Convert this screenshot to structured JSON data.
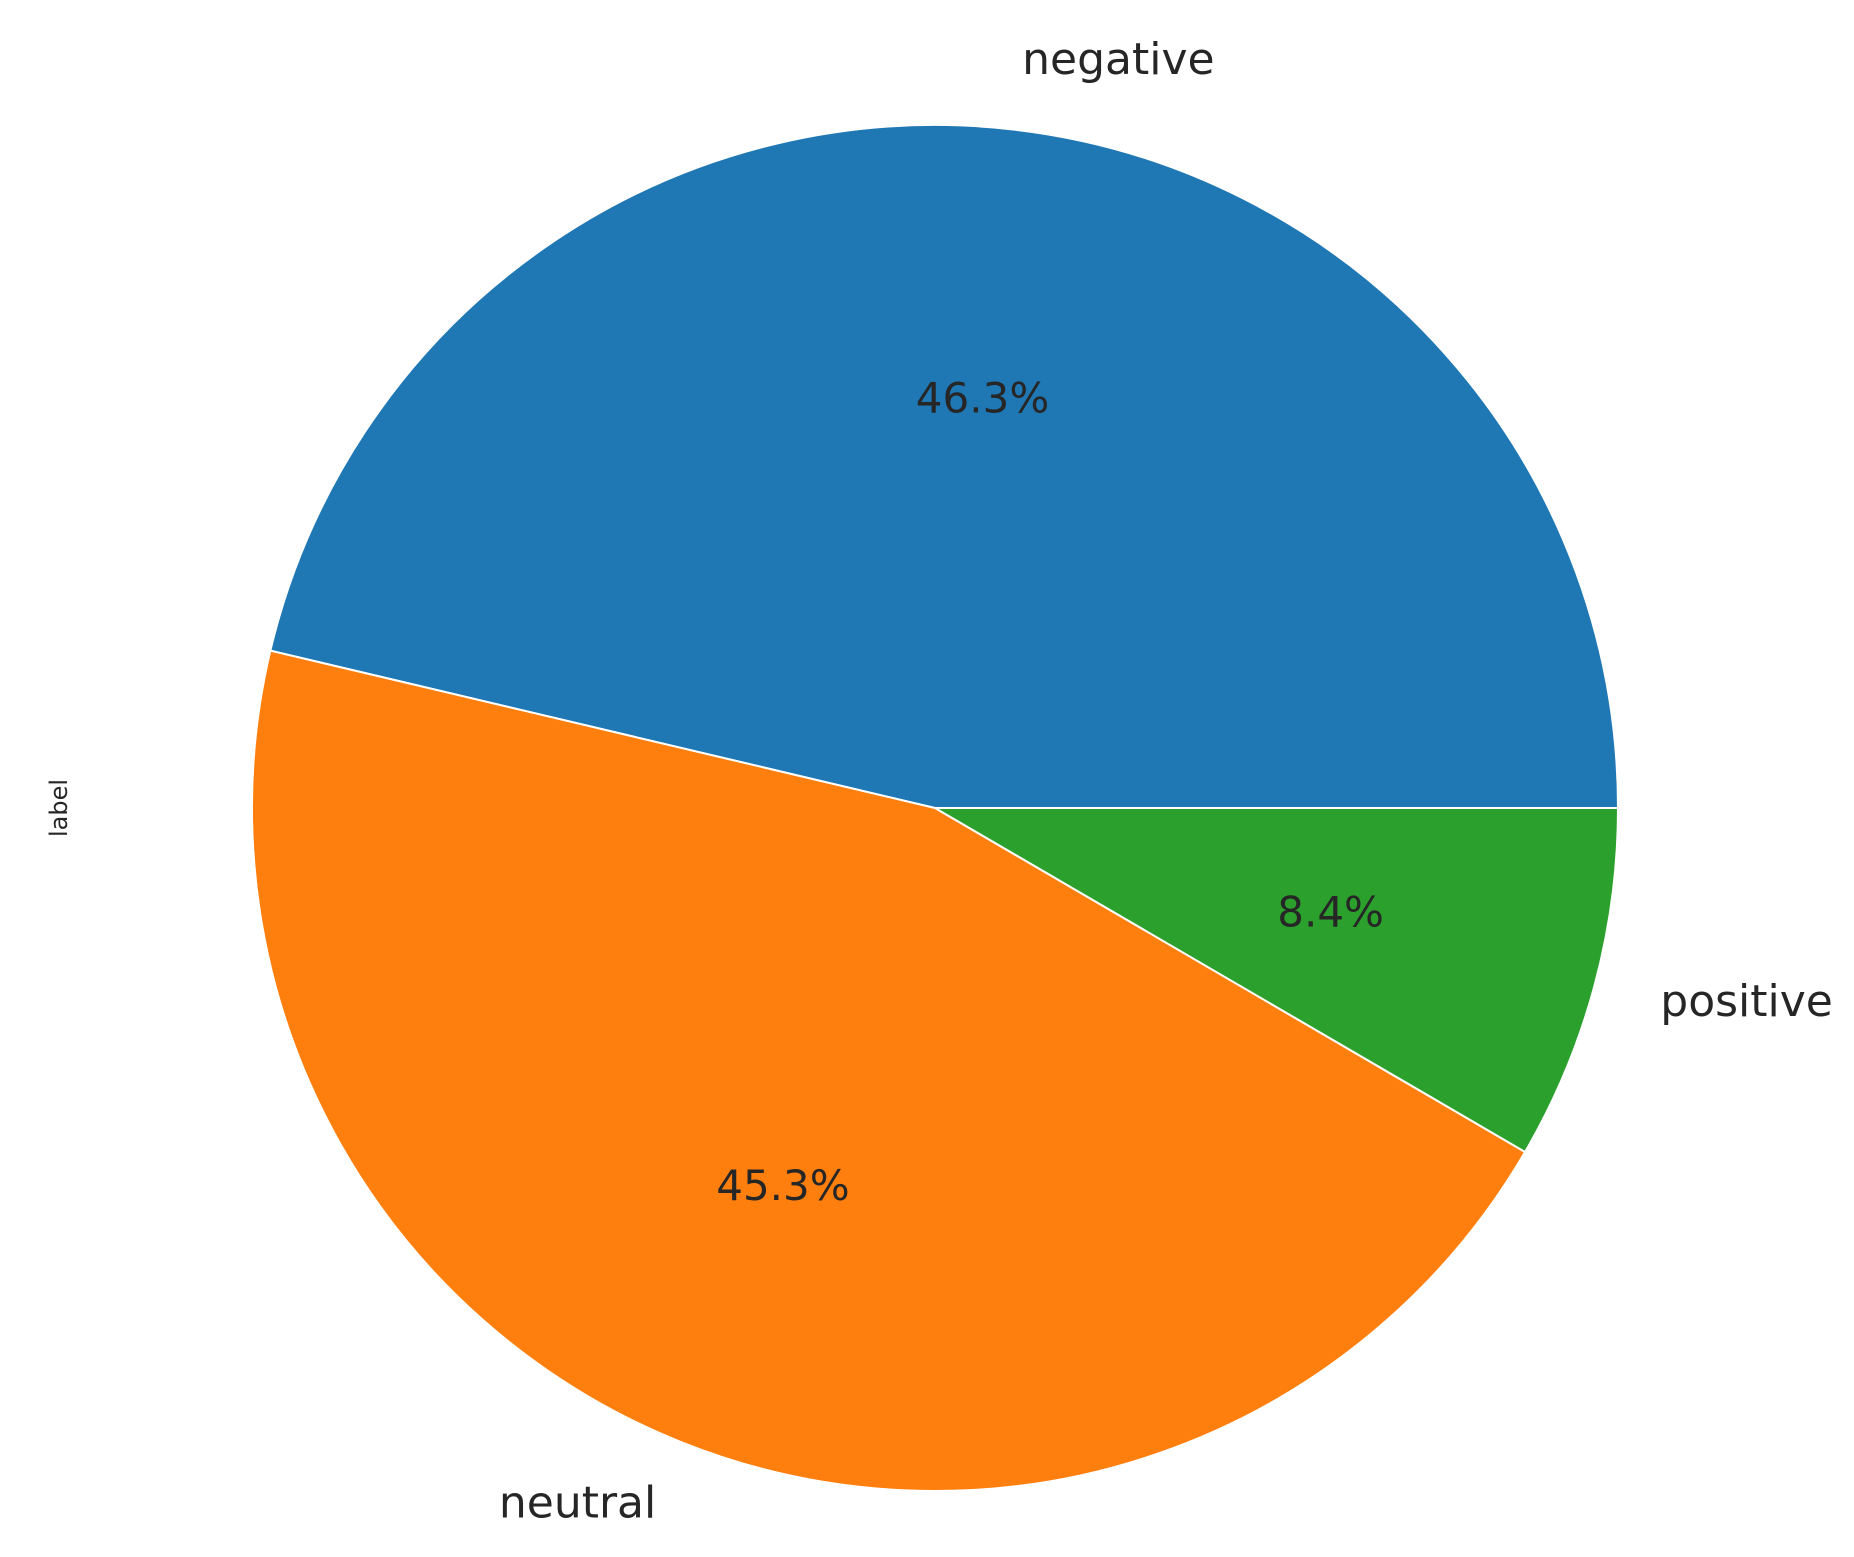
{
  "chart_data": {
    "type": "pie",
    "title": "",
    "ylabel": "label",
    "start_angle_deg": 0,
    "direction": "counterclockwise",
    "slices": [
      {
        "label": "negative",
        "value": 46.3,
        "pct_label": "46.3%",
        "color": "#1f77b4"
      },
      {
        "label": "neutral",
        "value": 45.3,
        "pct_label": "45.3%",
        "color": "#ff7f0e"
      },
      {
        "label": "positive",
        "value": 8.4,
        "pct_label": "8.4%",
        "color": "#2ca02c"
      }
    ],
    "edge_color": "#ffffff",
    "legend": "none"
  }
}
